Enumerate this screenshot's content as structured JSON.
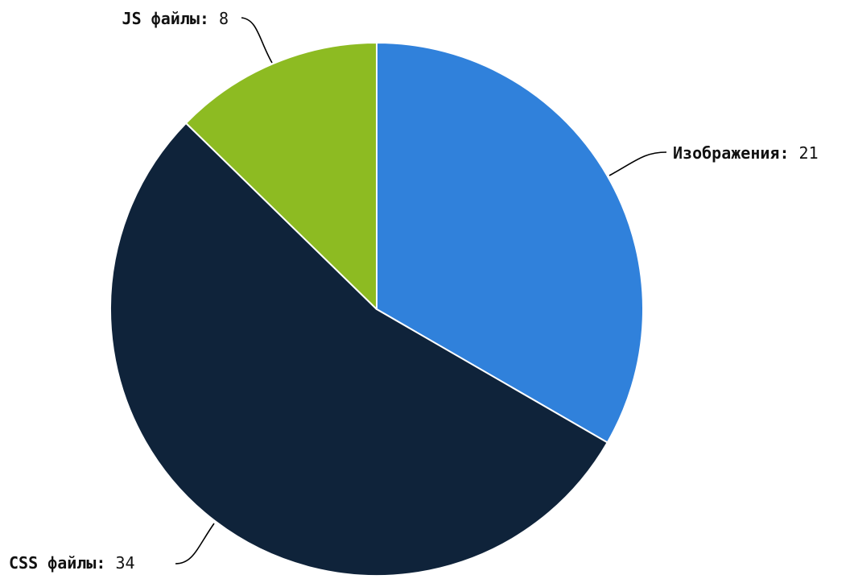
{
  "chart_data": {
    "type": "pie",
    "title": "",
    "start_angle_deg": 0,
    "direction": "clockwise",
    "slices": [
      {
        "label": "Изображения",
        "value": 21,
        "color": "#3081db"
      },
      {
        "label": "CSS файлы",
        "value": 34,
        "color": "#0f233a"
      },
      {
        "label": "JS файлы",
        "value": 8,
        "color": "#8dbb22"
      }
    ],
    "label_separator": ":"
  }
}
